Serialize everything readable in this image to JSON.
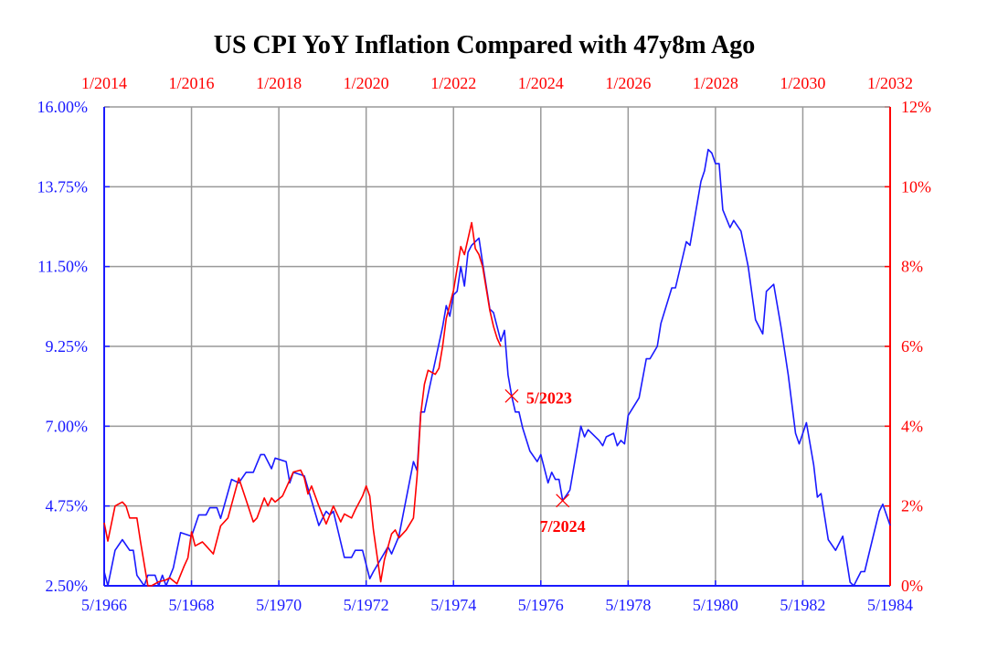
{
  "chart_data": {
    "type": "line",
    "title": "US CPI YoY Inflation Compared with 47y8m Ago",
    "grid": true,
    "colors": {
      "blue": "#1a1aff",
      "red": "#ff0000",
      "grid": "#999999"
    },
    "x_bottom": {
      "range": [
        "1966-05",
        "1984-05"
      ],
      "tick_labels": [
        "5/1966",
        "5/1968",
        "5/1970",
        "5/1972",
        "5/1974",
        "5/1976",
        "5/1978",
        "5/1980",
        "5/1982",
        "5/1984"
      ]
    },
    "x_top": {
      "range": [
        "2014-01",
        "2032-01"
      ],
      "tick_labels": [
        "1/2014",
        "1/2016",
        "1/2018",
        "1/2020",
        "1/2022",
        "1/2024",
        "1/2026",
        "1/2028",
        "1/2030",
        "1/2032"
      ]
    },
    "y_left": {
      "range": [
        2.5,
        16.0
      ],
      "tick_labels": [
        "2.50%",
        "4.75%",
        "7.00%",
        "9.25%",
        "11.50%",
        "13.75%",
        "16.00%"
      ]
    },
    "y_right": {
      "range": [
        0,
        12
      ],
      "tick_labels": [
        "0%",
        "2%",
        "4%",
        "6%",
        "8%",
        "10%",
        "12%"
      ]
    },
    "series": [
      {
        "axis": "bottom-left",
        "color": "#1a1aff",
        "points": [
          [
            "1966-05",
            2.9
          ],
          [
            "1966-06",
            2.5
          ],
          [
            "1966-08",
            3.5
          ],
          [
            "1966-10",
            3.8
          ],
          [
            "1966-12",
            3.5
          ],
          [
            "1967-01",
            3.5
          ],
          [
            "1967-02",
            2.8
          ],
          [
            "1967-04",
            2.5
          ],
          [
            "1967-05",
            2.8
          ],
          [
            "1967-07",
            2.8
          ],
          [
            "1967-08",
            2.5
          ],
          [
            "1967-09",
            2.8
          ],
          [
            "1967-10",
            2.5
          ],
          [
            "1967-12",
            3.0
          ],
          [
            "1968-02",
            4.0
          ],
          [
            "1968-05",
            3.9
          ],
          [
            "1968-07",
            4.5
          ],
          [
            "1968-09",
            4.5
          ],
          [
            "1968-10",
            4.7
          ],
          [
            "1968-12",
            4.7
          ],
          [
            "1969-01",
            4.4
          ],
          [
            "1969-04",
            5.5
          ],
          [
            "1969-06",
            5.4
          ],
          [
            "1969-08",
            5.7
          ],
          [
            "1969-10",
            5.7
          ],
          [
            "1969-12",
            6.2
          ],
          [
            "1970-01",
            6.2
          ],
          [
            "1970-03",
            5.8
          ],
          [
            "1970-04",
            6.1
          ],
          [
            "1970-07",
            6.0
          ],
          [
            "1970-08",
            5.4
          ],
          [
            "1970-09",
            5.7
          ],
          [
            "1970-12",
            5.6
          ],
          [
            "1971-04",
            4.2
          ],
          [
            "1971-06",
            4.6
          ],
          [
            "1971-07",
            4.5
          ],
          [
            "1971-08",
            4.6
          ],
          [
            "1971-11",
            3.3
          ],
          [
            "1972-01",
            3.3
          ],
          [
            "1972-02",
            3.5
          ],
          [
            "1972-04",
            3.5
          ],
          [
            "1972-06",
            2.7
          ],
          [
            "1972-07",
            2.9
          ],
          [
            "1972-11",
            3.6
          ],
          [
            "1972-12",
            3.4
          ],
          [
            "1973-02",
            3.9
          ],
          [
            "1973-06",
            6.0
          ],
          [
            "1973-07",
            5.75
          ],
          [
            "1973-08",
            7.4
          ],
          [
            "1973-09",
            7.4
          ],
          [
            "1973-10",
            7.9
          ],
          [
            "1974-02",
            9.8
          ],
          [
            "1974-03",
            10.4
          ],
          [
            "1974-04",
            10.1
          ],
          [
            "1974-05",
            10.7
          ],
          [
            "1974-06",
            10.8
          ],
          [
            "1974-07",
            11.5
          ],
          [
            "1974-08",
            10.95
          ],
          [
            "1974-09",
            11.9
          ],
          [
            "1974-10",
            12.1
          ],
          [
            "1974-12",
            12.3
          ],
          [
            "1975-01",
            11.6
          ],
          [
            "1975-03",
            10.3
          ],
          [
            "1975-04",
            10.2
          ],
          [
            "1975-06",
            9.4
          ],
          [
            "1975-07",
            9.7
          ],
          [
            "1975-08",
            8.45
          ],
          [
            "1975-09",
            7.85
          ],
          [
            "1975-10",
            7.4
          ],
          [
            "1975-11",
            7.4
          ],
          [
            "1975-12",
            6.95
          ],
          [
            "1976-02",
            6.3
          ],
          [
            "1976-04",
            6.0
          ],
          [
            "1976-05",
            6.2
          ],
          [
            "1976-07",
            5.4
          ],
          [
            "1976-08",
            5.7
          ],
          [
            "1976-09",
            5.5
          ],
          [
            "1976-10",
            5.5
          ],
          [
            "1976-11",
            4.9
          ],
          [
            "1977-01",
            5.2
          ],
          [
            "1977-04",
            7.0
          ],
          [
            "1977-05",
            6.7
          ],
          [
            "1977-06",
            6.9
          ],
          [
            "1977-09",
            6.6
          ],
          [
            "1977-10",
            6.45
          ],
          [
            "1977-11",
            6.7
          ],
          [
            "1978-01",
            6.8
          ],
          [
            "1978-02",
            6.45
          ],
          [
            "1978-03",
            6.6
          ],
          [
            "1978-04",
            6.5
          ],
          [
            "1978-05",
            7.3
          ],
          [
            "1978-08",
            7.8
          ],
          [
            "1978-10",
            8.9
          ],
          [
            "1978-11",
            8.9
          ],
          [
            "1979-01",
            9.25
          ],
          [
            "1979-02",
            9.9
          ],
          [
            "1979-05",
            10.9
          ],
          [
            "1979-06",
            10.9
          ],
          [
            "1979-09",
            12.2
          ],
          [
            "1979-10",
            12.1
          ],
          [
            "1980-01",
            13.9
          ],
          [
            "1980-02",
            14.2
          ],
          [
            "1980-03",
            14.8
          ],
          [
            "1980-04",
            14.7
          ],
          [
            "1980-05",
            14.4
          ],
          [
            "1980-06",
            14.4
          ],
          [
            "1980-07",
            13.1
          ],
          [
            "1980-09",
            12.6
          ],
          [
            "1980-10",
            12.8
          ],
          [
            "1980-12",
            12.5
          ],
          [
            "1981-02",
            11.5
          ],
          [
            "1981-04",
            10.0
          ],
          [
            "1981-06",
            9.6
          ],
          [
            "1981-07",
            10.8
          ],
          [
            "1981-09",
            11.0
          ],
          [
            "1981-11",
            9.8
          ],
          [
            "1982-01",
            8.45
          ],
          [
            "1982-03",
            6.8
          ],
          [
            "1982-04",
            6.5
          ],
          [
            "1982-06",
            7.1
          ],
          [
            "1982-08",
            5.9
          ],
          [
            "1982-09",
            5.0
          ],
          [
            "1982-10",
            5.1
          ],
          [
            "1982-12",
            3.8
          ],
          [
            "1983-02",
            3.5
          ],
          [
            "1983-04",
            3.9
          ],
          [
            "1983-06",
            2.6
          ],
          [
            "1983-07",
            2.5
          ],
          [
            "1983-09",
            2.9
          ],
          [
            "1983-10",
            2.9
          ],
          [
            "1984-02",
            4.6
          ],
          [
            "1984-03",
            4.8
          ],
          [
            "1984-05",
            4.2
          ]
        ]
      },
      {
        "axis": "top-right",
        "color": "#ff0000",
        "points": [
          [
            "2014-01",
            1.58
          ],
          [
            "2014-02",
            1.12
          ],
          [
            "2014-04",
            2.0
          ],
          [
            "2014-06",
            2.1
          ],
          [
            "2014-07",
            2.0
          ],
          [
            "2014-08",
            1.7
          ],
          [
            "2014-10",
            1.7
          ],
          [
            "2014-11",
            1.1
          ],
          [
            "2015-01",
            0.0
          ],
          [
            "2015-02",
            0.0
          ],
          [
            "2015-04",
            0.1
          ],
          [
            "2015-06",
            0.15
          ],
          [
            "2015-07",
            0.2
          ],
          [
            "2015-09",
            0.05
          ],
          [
            "2015-11",
            0.5
          ],
          [
            "2015-12",
            0.7
          ],
          [
            "2016-01",
            1.35
          ],
          [
            "2016-02",
            1.0
          ],
          [
            "2016-04",
            1.1
          ],
          [
            "2016-05",
            1.0
          ],
          [
            "2016-07",
            0.8
          ],
          [
            "2016-09",
            1.5
          ],
          [
            "2016-11",
            1.7
          ],
          [
            "2017-02",
            2.7
          ],
          [
            "2017-04",
            2.15
          ],
          [
            "2017-06",
            1.6
          ],
          [
            "2017-07",
            1.7
          ],
          [
            "2017-09",
            2.2
          ],
          [
            "2017-10",
            2.0
          ],
          [
            "2017-11",
            2.2
          ],
          [
            "2017-12",
            2.1
          ],
          [
            "2018-02",
            2.25
          ],
          [
            "2018-05",
            2.85
          ],
          [
            "2018-07",
            2.9
          ],
          [
            "2018-08",
            2.7
          ],
          [
            "2018-09",
            2.3
          ],
          [
            "2018-10",
            2.5
          ],
          [
            "2018-12",
            2.0
          ],
          [
            "2019-02",
            1.55
          ],
          [
            "2019-04",
            2.0
          ],
          [
            "2019-06",
            1.6
          ],
          [
            "2019-07",
            1.8
          ],
          [
            "2019-09",
            1.7
          ],
          [
            "2019-10",
            1.9
          ],
          [
            "2019-12",
            2.25
          ],
          [
            "2020-01",
            2.5
          ],
          [
            "2020-02",
            2.25
          ],
          [
            "2020-03",
            1.4
          ],
          [
            "2020-05",
            0.1
          ],
          [
            "2020-06",
            0.65
          ],
          [
            "2020-08",
            1.3
          ],
          [
            "2020-09",
            1.4
          ],
          [
            "2020-10",
            1.2
          ],
          [
            "2020-12",
            1.4
          ],
          [
            "2021-02",
            1.7
          ],
          [
            "2021-03",
            2.75
          ],
          [
            "2021-04",
            4.3
          ],
          [
            "2021-05",
            5.05
          ],
          [
            "2021-06",
            5.4
          ],
          [
            "2021-08",
            5.3
          ],
          [
            "2021-09",
            5.45
          ],
          [
            "2021-10",
            6.0
          ],
          [
            "2021-11",
            6.7
          ],
          [
            "2022-01",
            7.4
          ],
          [
            "2022-03",
            8.5
          ],
          [
            "2022-04",
            8.3
          ],
          [
            "2022-06",
            9.1
          ],
          [
            "2022-07",
            8.45
          ],
          [
            "2022-08",
            8.3
          ],
          [
            "2022-09",
            8.0
          ],
          [
            "2022-11",
            6.9
          ],
          [
            "2022-12",
            6.5
          ],
          [
            "2023-01",
            6.2
          ],
          [
            "2023-02",
            6.0
          ]
        ]
      }
    ],
    "annotations": [
      {
        "label": "5/2023",
        "date": "2023-05",
        "color": "#ff0000"
      },
      {
        "label": "7/2024",
        "date": "2024-07",
        "color": "#ff0000"
      }
    ]
  }
}
